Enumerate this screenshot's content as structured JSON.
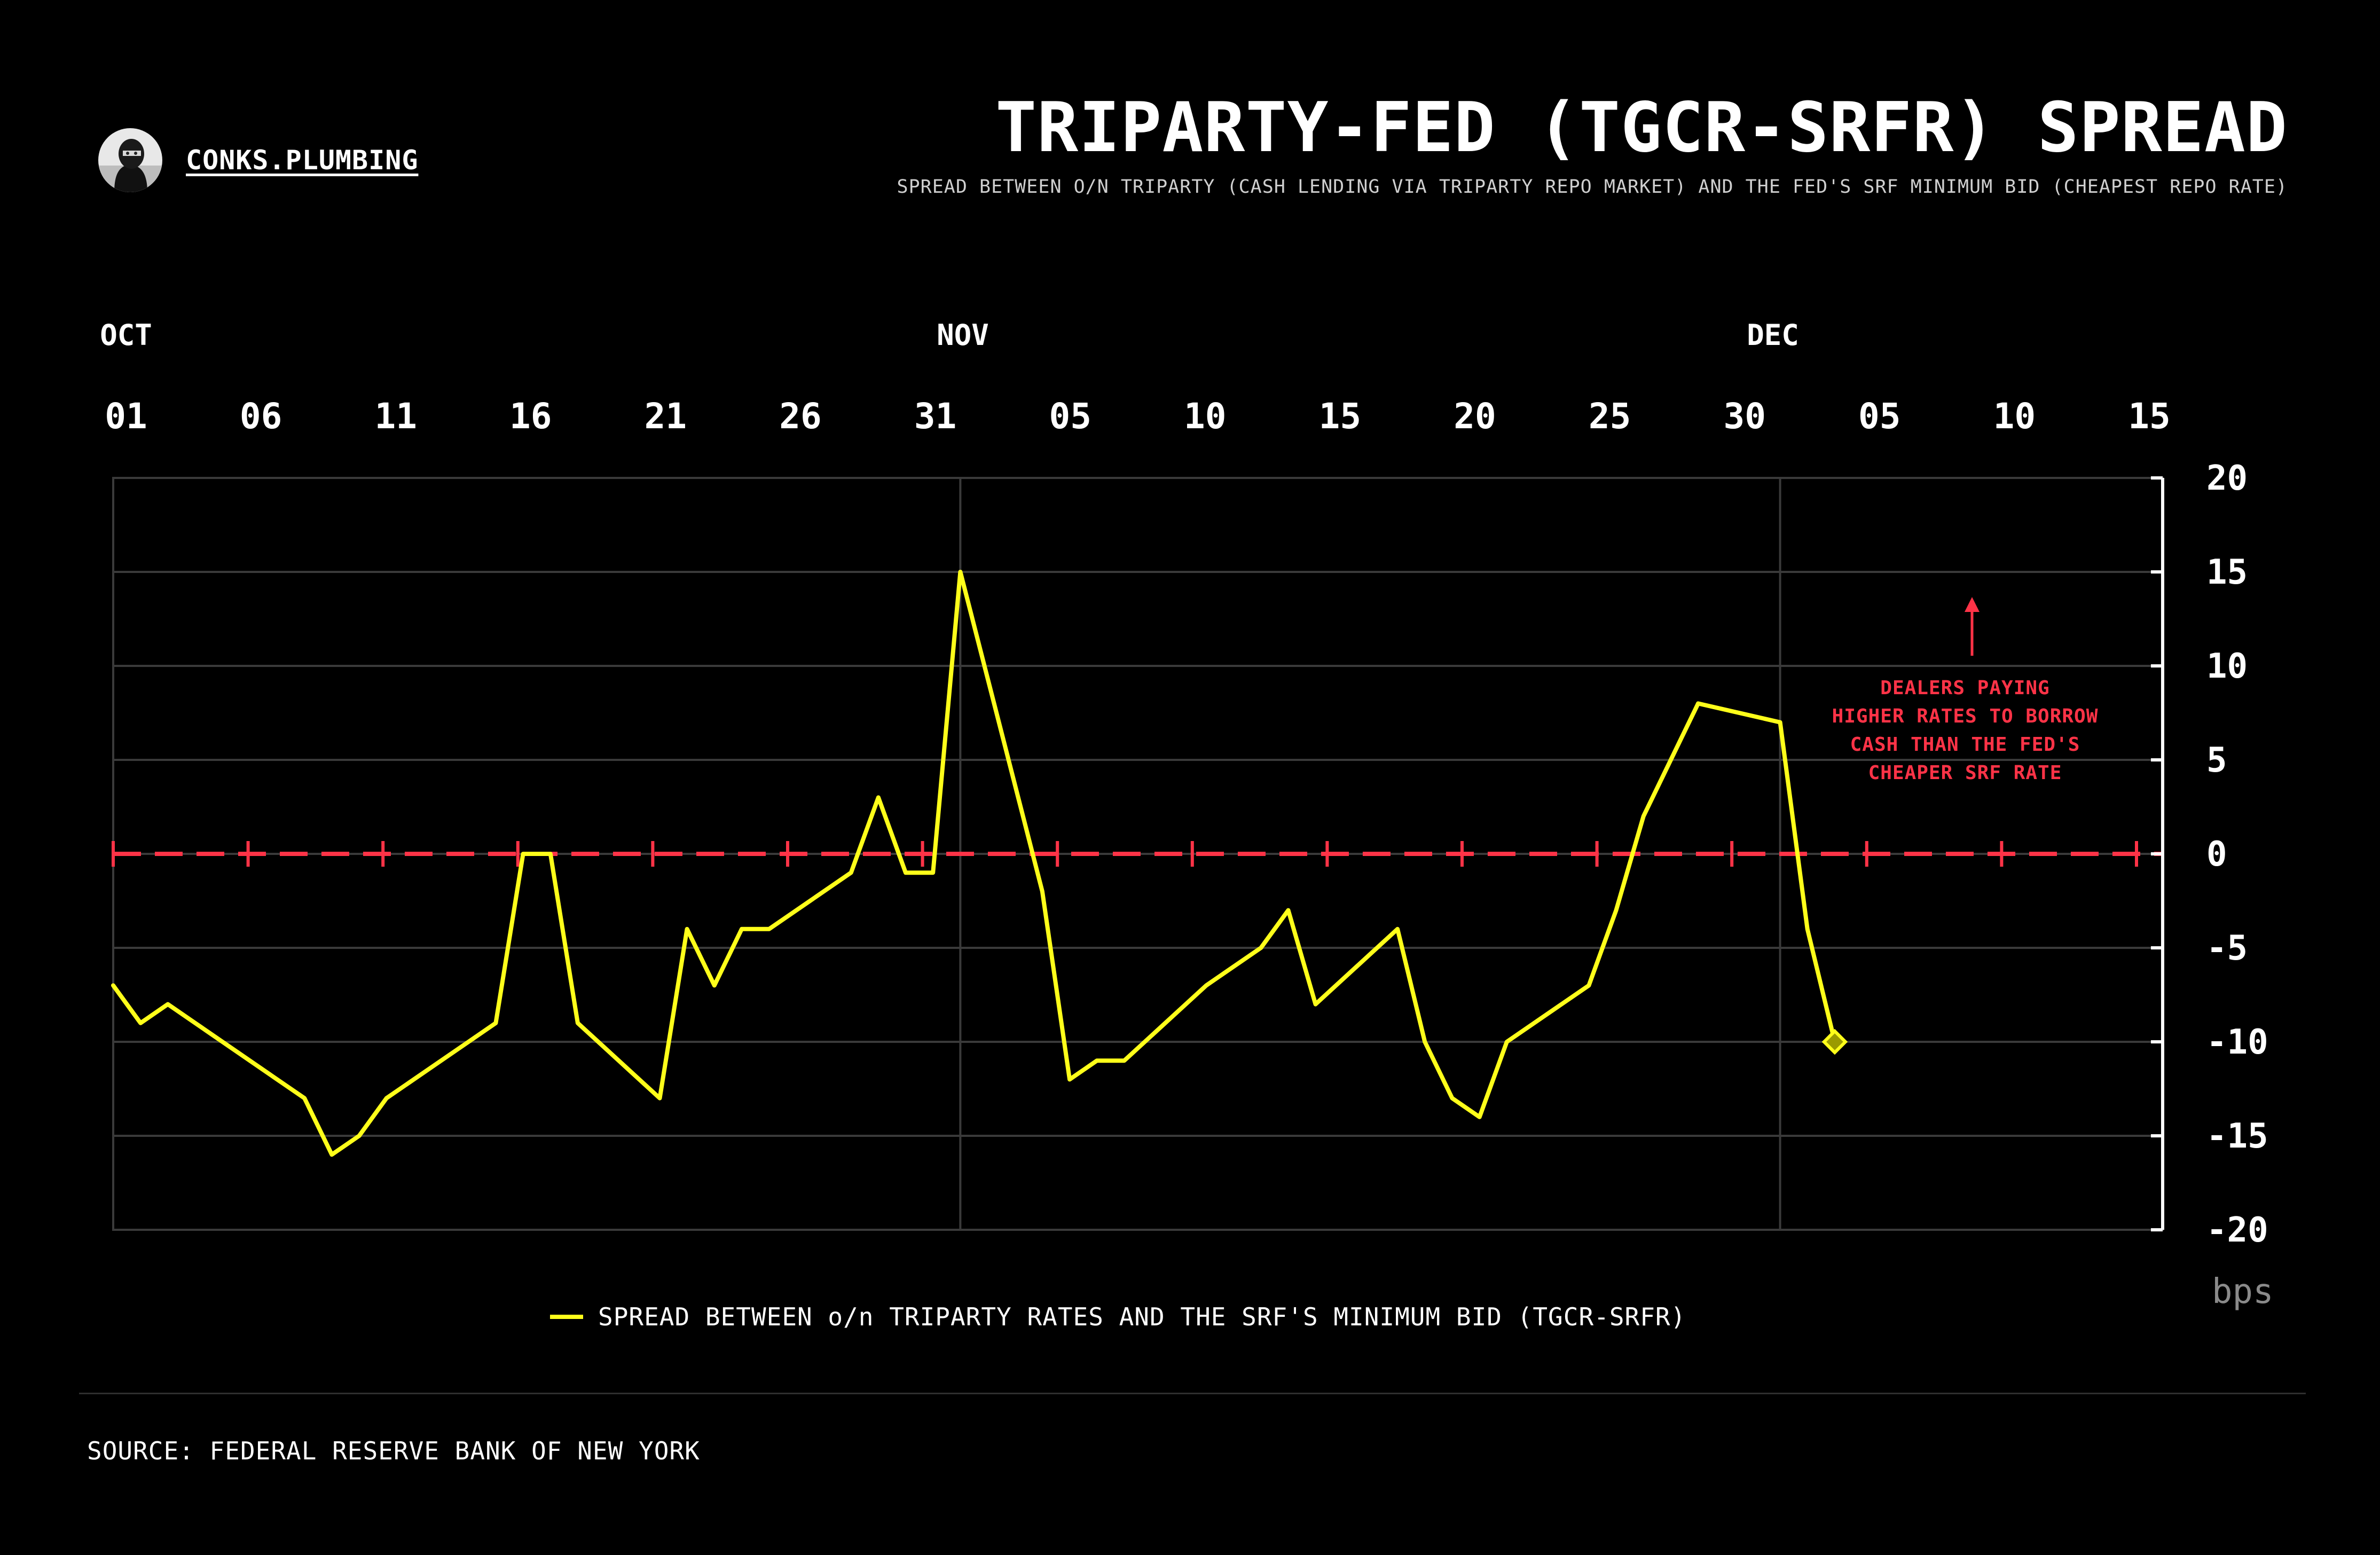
{
  "brand": {
    "name": "CONKS.PLUMBING"
  },
  "header": {
    "title": "TRIPARTY-FED (TGCR-SRFR) SPREAD",
    "subtitle": "SPREAD BETWEEN O/N TRIPARTY (CASH LENDING VIA TRIPARTY REPO MARKET) AND THE FED'S SRF MINIMUM BID (CHEAPEST REPO RATE)"
  },
  "footer": {
    "source": "SOURCE: FEDERAL RESERVE BANK OF NEW YORK"
  },
  "colors": {
    "background": "#000000",
    "series": "#ffff1a",
    "zero_line": "#ff3347",
    "grid": "#3a3a3a"
  },
  "chart_data": {
    "type": "line",
    "x_month_labels": [
      "OCT",
      "NOV",
      "DEC"
    ],
    "x_tick_labels": [
      "01",
      "06",
      "11",
      "16",
      "21",
      "26",
      "31",
      "05",
      "10",
      "15",
      "20",
      "25",
      "30",
      "05",
      "10",
      "15"
    ],
    "y_tick_labels": [
      "20",
      "15",
      "10",
      "5",
      "0",
      "-5",
      "-10",
      "-15",
      "-20"
    ],
    "y_unit": "bps",
    "xlim": [
      "2025-10-01",
      "2025-12-15"
    ],
    "ylim": [
      -20,
      20
    ],
    "y_axis_position": "right",
    "grid": true,
    "legend_position": "bottom-center",
    "reference_line": {
      "y": 0,
      "style": "dashed"
    },
    "annotation": "DEALERS PAYING\nHIGHER RATES TO BORROW\nCASH THAN THE FED'S\nCHEAPER SRF RATE",
    "series": [
      {
        "name": "SPREAD BETWEEN o/n TRIPARTY RATES AND THE SRF'S MINIMUM BID (TGCR-SRFR)",
        "points": [
          [
            "2025-10-01",
            -7
          ],
          [
            "2025-10-02",
            -9
          ],
          [
            "2025-10-03",
            -8
          ],
          [
            "2025-10-07",
            -12
          ],
          [
            "2025-10-08",
            -13
          ],
          [
            "2025-10-09",
            -16
          ],
          [
            "2025-10-10",
            -15
          ],
          [
            "2025-10-11",
            -13
          ],
          [
            "2025-10-14",
            -10
          ],
          [
            "2025-10-15",
            -9
          ],
          [
            "2025-10-16",
            0
          ],
          [
            "2025-10-17",
            0
          ],
          [
            "2025-10-18",
            -9
          ],
          [
            "2025-10-21",
            -13
          ],
          [
            "2025-10-22",
            -4
          ],
          [
            "2025-10-23",
            -7
          ],
          [
            "2025-10-24",
            -4
          ],
          [
            "2025-10-25",
            -4
          ],
          [
            "2025-10-28",
            -1
          ],
          [
            "2025-10-29",
            3
          ],
          [
            "2025-10-30",
            -1
          ],
          [
            "2025-10-31",
            -1
          ],
          [
            "2025-11-01",
            15
          ],
          [
            "2025-11-04",
            -2
          ],
          [
            "2025-11-05",
            -12
          ],
          [
            "2025-11-06",
            -11
          ],
          [
            "2025-11-07",
            -11
          ],
          [
            "2025-11-10",
            -7
          ],
          [
            "2025-11-12",
            -5
          ],
          [
            "2025-11-13",
            -3
          ],
          [
            "2025-11-14",
            -8
          ],
          [
            "2025-11-17",
            -4
          ],
          [
            "2025-11-18",
            -10
          ],
          [
            "2025-11-19",
            -13
          ],
          [
            "2025-11-20",
            -14
          ],
          [
            "2025-11-21",
            -10
          ],
          [
            "2025-11-24",
            -7
          ],
          [
            "2025-11-25",
            -3
          ],
          [
            "2025-11-26",
            2
          ],
          [
            "2025-11-28",
            8
          ],
          [
            "2025-12-01",
            7
          ],
          [
            "2025-12-02",
            -4
          ],
          [
            "2025-12-03",
            -10
          ]
        ]
      }
    ]
  }
}
